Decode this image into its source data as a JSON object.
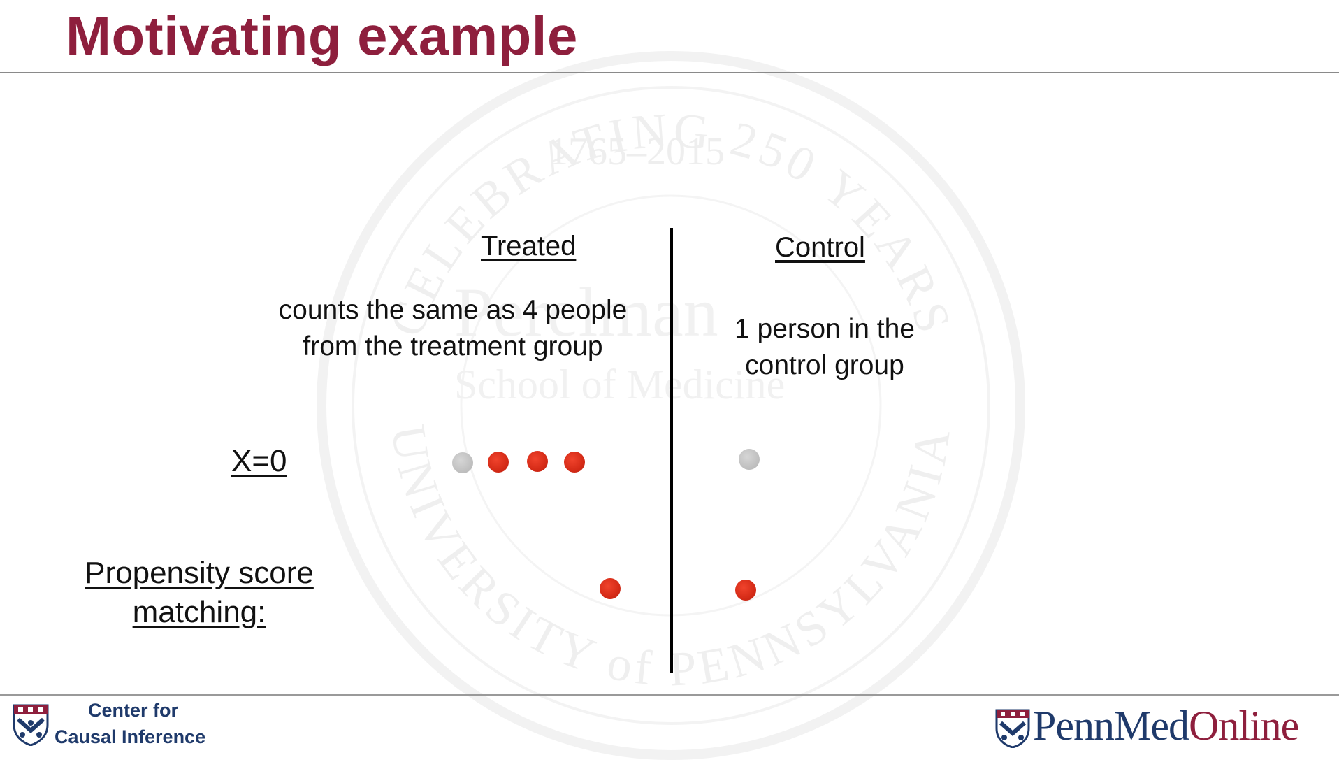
{
  "title": "Motivating example",
  "columns": {
    "treated": "Treated",
    "control": "Control"
  },
  "descriptions": {
    "treated": "counts the same as 4 people from the treatment group",
    "control": "1 person in the control group"
  },
  "rows": {
    "x0_label": "X=0",
    "ps_label": "Propensity score matching:"
  },
  "dots": {
    "x0_treated": [
      "gray",
      "red",
      "red",
      "red"
    ],
    "x0_control": [
      "gray"
    ],
    "ps_treated": [
      "red"
    ],
    "ps_control": [
      "red"
    ]
  },
  "watermark": {
    "arc_top": "CELEBRATING 250 YEARS",
    "years": "1765–2015",
    "name": "Perelman",
    "school": "School of Medicine",
    "arc_bottom": "UNIVERSITY of PENNSYLVANIA"
  },
  "footer": {
    "center_line1": "Center for",
    "center_line2": "Causal Inference",
    "brand_part1": "PennMed",
    "brand_part2": "Online"
  },
  "colors": {
    "title": "#8e1f3d",
    "navy": "#1f3a6b",
    "dot_red": "#d52b17",
    "dot_gray": "#bdbdbd"
  }
}
